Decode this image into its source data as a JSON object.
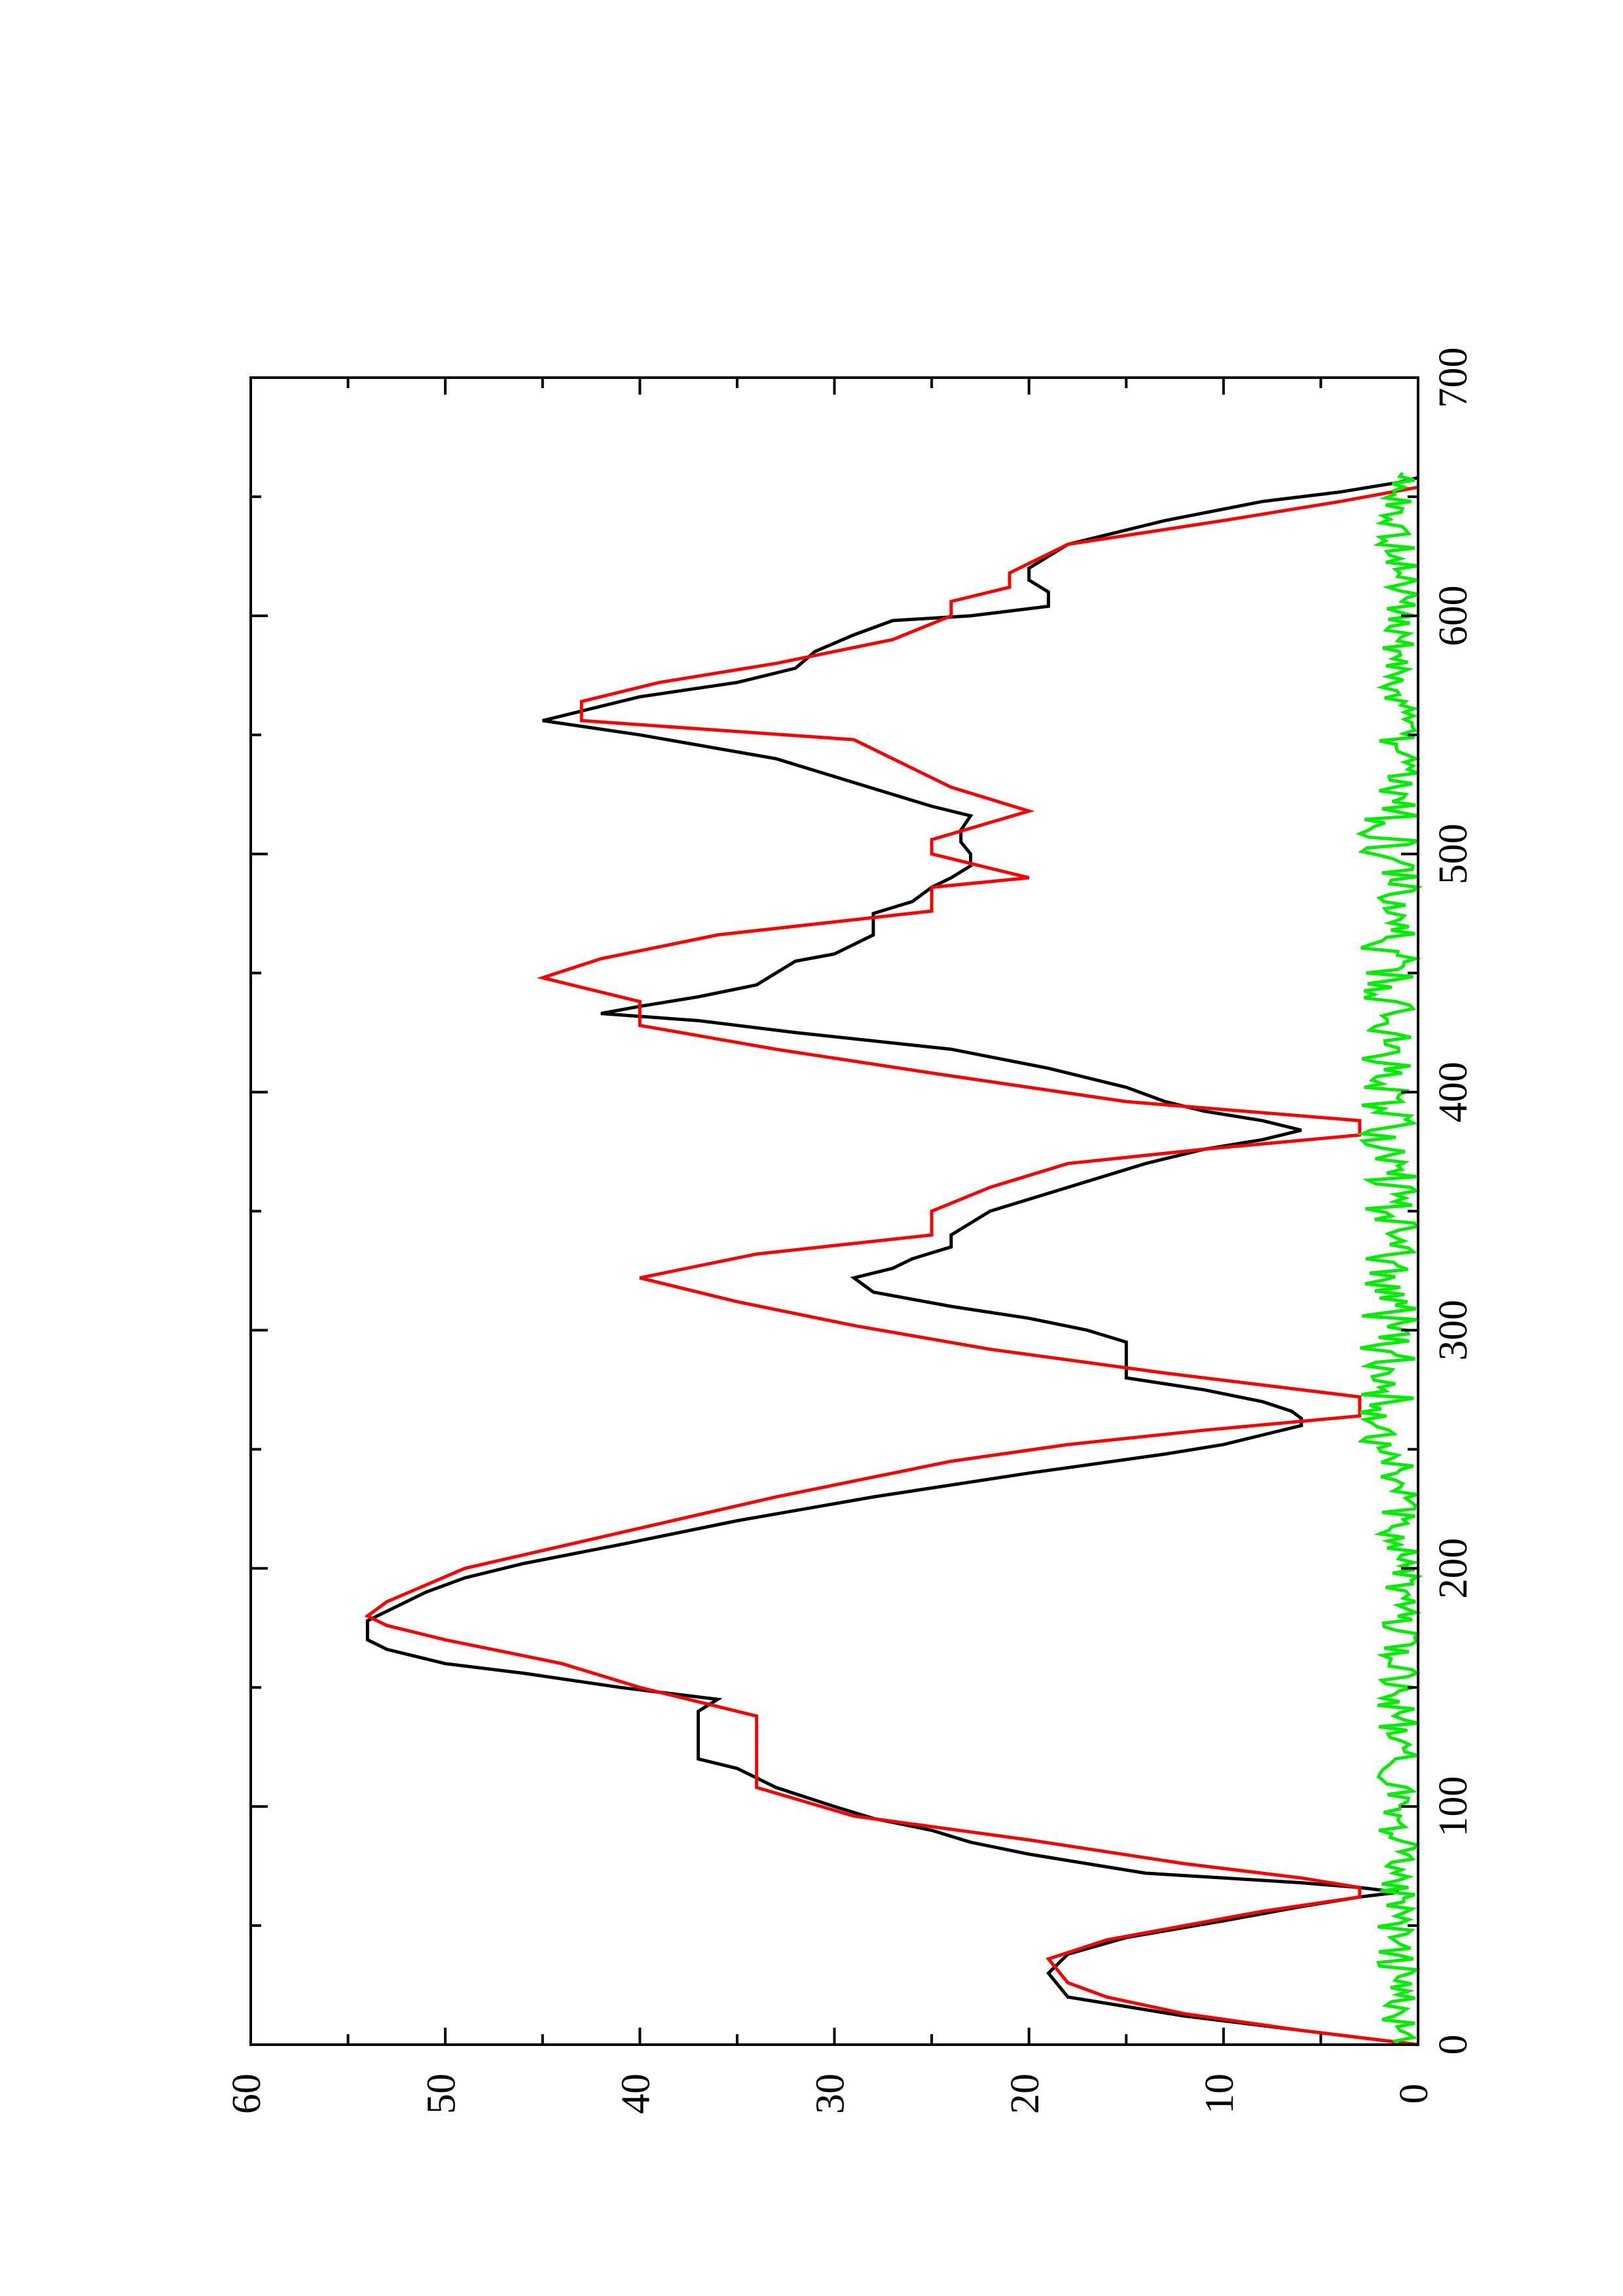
{
  "chart_data": {
    "type": "line",
    "orientation": "rotated 90 degrees counter-clockwise (x axis runs bottom to top on the page, y axis runs right to left)",
    "title": "",
    "xlabel": "",
    "ylabel": "",
    "xlim": [
      0,
      700
    ],
    "ylim": [
      0,
      60
    ],
    "x_ticks": [
      0,
      100,
      200,
      300,
      400,
      500,
      600,
      700
    ],
    "x_tick_labels": [
      "0",
      "100",
      "200",
      "300",
      "400",
      "500",
      "600",
      "700"
    ],
    "y_ticks": [
      0,
      10,
      20,
      30,
      40,
      50,
      60
    ],
    "y_tick_labels": [
      "0",
      "10",
      "20",
      "30",
      "40",
      "50",
      "60"
    ],
    "grid": false,
    "legend": false,
    "series": [
      {
        "color": "#000000",
        "x": [
          0,
          6,
          12,
          20,
          30,
          38,
          45,
          52,
          58,
          62,
          64,
          66,
          68,
          70,
          72,
          76,
          80,
          85,
          90,
          95,
          100,
          108,
          116,
          120,
          126,
          130,
          134,
          140,
          145,
          150,
          156,
          160,
          166,
          170,
          174,
          178,
          182,
          186,
          190,
          196,
          202,
          210,
          220,
          230,
          240,
          248,
          252,
          256,
          260,
          263,
          266,
          270,
          275,
          280,
          285,
          290,
          295,
          300,
          305,
          310,
          316,
          322,
          326,
          330,
          335,
          340,
          350,
          360,
          370,
          376,
          380,
          384,
          388,
          392,
          396,
          402,
          410,
          418,
          425,
          430,
          433,
          436,
          440,
          445,
          450,
          455,
          458,
          462,
          466,
          470,
          475,
          480,
          486,
          490,
          495,
          500,
          505,
          510,
          516,
          520,
          530,
          540,
          550,
          556,
          560,
          566,
          572,
          578,
          585,
          592,
          598,
          600,
          604,
          610,
          615,
          620,
          630,
          640,
          648,
          652,
          656,
          658
        ],
        "y": [
          0,
          6,
          12,
          18,
          19,
          18,
          15,
          10,
          6,
          3,
          1,
          3,
          6,
          10,
          14,
          17,
          20,
          23,
          25,
          28,
          30,
          33,
          35,
          37,
          37,
          37,
          37,
          37,
          36,
          41,
          46,
          50,
          53,
          54,
          54,
          54,
          53,
          52,
          51,
          49,
          46,
          41,
          35,
          28,
          20,
          13,
          10,
          8,
          6,
          6,
          6.5,
          8,
          11,
          15,
          15,
          15,
          15,
          17,
          20,
          24,
          28,
          29,
          27,
          26,
          24,
          24,
          22,
          18,
          14,
          11,
          8,
          6,
          8,
          11,
          13,
          15,
          19,
          24,
          32,
          37,
          42,
          40,
          37,
          34,
          33,
          32,
          30,
          29,
          28,
          28,
          28,
          26,
          25,
          24,
          23,
          23,
          23.5,
          23.5,
          23,
          25,
          29,
          33,
          40,
          45,
          43,
          40,
          35,
          32,
          31,
          29,
          27,
          23,
          19,
          19,
          20,
          20,
          18,
          13,
          8,
          4,
          1,
          0
        ]
      },
      {
        "color": "#ff0000",
        "x": [
          0,
          6,
          13,
          20,
          26,
          36,
          44,
          50,
          56,
          62,
          66,
          70,
          76,
          86,
          96,
          108,
          118,
          128,
          138,
          150,
          160,
          170,
          176,
          180,
          186,
          200,
          215,
          230,
          245,
          252,
          258,
          264,
          272,
          282,
          292,
          302,
          312,
          322,
          332,
          340,
          350,
          360,
          370,
          376,
          382,
          388,
          396,
          408,
          418,
          428,
          438,
          448,
          456,
          466,
          476,
          486,
          490,
          500,
          506,
          518,
          528,
          540,
          548,
          556,
          564,
          572,
          580,
          590,
          600,
          606,
          612,
          618,
          630,
          640,
          648,
          654
        ],
        "y": [
          0,
          6,
          12,
          16,
          18,
          19,
          16,
          12,
          8,
          3,
          3,
          6,
          12,
          20,
          29,
          34,
          34,
          34,
          34,
          40,
          44,
          50,
          53,
          54,
          53,
          49,
          41,
          33,
          24,
          18,
          11,
          3,
          3,
          13,
          22,
          29,
          35,
          40,
          34,
          25,
          25,
          22,
          18,
          11,
          3,
          3,
          15,
          25,
          33,
          40,
          40,
          45,
          42,
          36,
          25,
          25,
          20,
          25,
          25,
          20,
          24,
          27,
          29,
          43,
          43,
          39,
          33,
          27,
          24,
          24,
          21,
          21,
          18,
          10,
          4,
          0
        ]
      },
      {
        "color": "#00ee00",
        "noise_band": [
          0,
          3
        ],
        "x_range": [
          0,
          660
        ]
      }
    ]
  }
}
